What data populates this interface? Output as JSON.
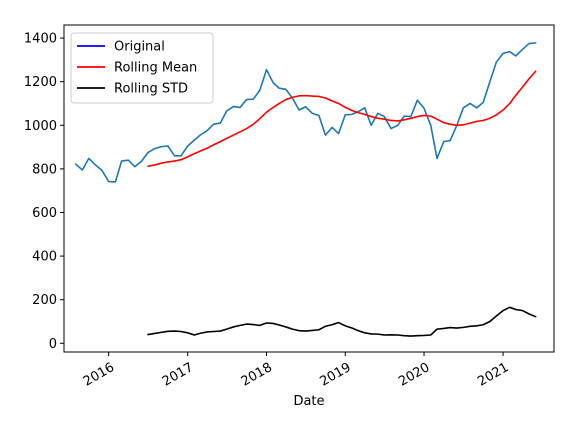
{
  "chart_data": {
    "type": "line",
    "title": "",
    "xlabel": "Date",
    "ylabel": "",
    "ylim": [
      -40,
      1460
    ],
    "xlim": [
      "2015-06-08",
      "2021-08-25"
    ],
    "grid": false,
    "legend_position": "top-left",
    "x_ticks": [
      {
        "date": "2016-01-01",
        "label": "2016"
      },
      {
        "date": "2017-01-01",
        "label": "2017"
      },
      {
        "date": "2018-01-01",
        "label": "2018"
      },
      {
        "date": "2019-01-01",
        "label": "2019"
      },
      {
        "date": "2020-01-01",
        "label": "2020"
      },
      {
        "date": "2021-01-01",
        "label": "2021"
      }
    ],
    "y_ticks": [
      0,
      200,
      400,
      600,
      800,
      1000,
      1200,
      1400
    ],
    "series": [
      {
        "name": "Original",
        "legend_color": "#0000ff",
        "line_color": "#1f77b4",
        "points": [
          [
            "2015-08-01",
            822
          ],
          [
            "2015-09-01",
            795
          ],
          [
            "2015-10-01",
            848
          ],
          [
            "2015-11-01",
            818
          ],
          [
            "2015-12-01",
            793
          ],
          [
            "2016-01-01",
            742
          ],
          [
            "2016-02-01",
            740
          ],
          [
            "2016-03-01",
            836
          ],
          [
            "2016-04-01",
            840
          ],
          [
            "2016-05-01",
            810
          ],
          [
            "2016-06-01",
            835
          ],
          [
            "2016-07-01",
            875
          ],
          [
            "2016-08-01",
            893
          ],
          [
            "2016-09-01",
            902
          ],
          [
            "2016-10-01",
            905
          ],
          [
            "2016-11-01",
            860
          ],
          [
            "2016-12-01",
            860
          ],
          [
            "2017-01-01",
            905
          ],
          [
            "2017-02-01",
            932
          ],
          [
            "2017-03-01",
            956
          ],
          [
            "2017-04-01",
            975
          ],
          [
            "2017-05-01",
            1005
          ],
          [
            "2017-06-01",
            1010
          ],
          [
            "2017-07-01",
            1066
          ],
          [
            "2017-08-01",
            1086
          ],
          [
            "2017-09-01",
            1082
          ],
          [
            "2017-10-01",
            1118
          ],
          [
            "2017-11-01",
            1120
          ],
          [
            "2017-12-01",
            1160
          ],
          [
            "2018-01-01",
            1255
          ],
          [
            "2018-02-01",
            1195
          ],
          [
            "2018-03-01",
            1170
          ],
          [
            "2018-04-01",
            1165
          ],
          [
            "2018-05-01",
            1125
          ],
          [
            "2018-06-01",
            1070
          ],
          [
            "2018-07-01",
            1085
          ],
          [
            "2018-08-01",
            1055
          ],
          [
            "2018-09-01",
            1045
          ],
          [
            "2018-10-01",
            955
          ],
          [
            "2018-11-01",
            990
          ],
          [
            "2018-12-01",
            962
          ],
          [
            "2019-01-01",
            1048
          ],
          [
            "2019-02-01",
            1050
          ],
          [
            "2019-03-01",
            1062
          ],
          [
            "2019-04-01",
            1080
          ],
          [
            "2019-05-01",
            1000
          ],
          [
            "2019-06-01",
            1055
          ],
          [
            "2019-07-01",
            1040
          ],
          [
            "2019-08-01",
            985
          ],
          [
            "2019-09-01",
            1000
          ],
          [
            "2019-10-01",
            1042
          ],
          [
            "2019-11-01",
            1040
          ],
          [
            "2019-12-01",
            1115
          ],
          [
            "2020-01-01",
            1078
          ],
          [
            "2020-02-01",
            1000
          ],
          [
            "2020-03-01",
            848
          ],
          [
            "2020-04-01",
            925
          ],
          [
            "2020-05-01",
            930
          ],
          [
            "2020-06-01",
            1000
          ],
          [
            "2020-07-01",
            1080
          ],
          [
            "2020-08-01",
            1100
          ],
          [
            "2020-09-01",
            1080
          ],
          [
            "2020-10-01",
            1105
          ],
          [
            "2020-11-01",
            1200
          ],
          [
            "2020-12-01",
            1290
          ],
          [
            "2021-01-01",
            1330
          ],
          [
            "2021-02-01",
            1338
          ],
          [
            "2021-03-01",
            1318
          ],
          [
            "2021-04-01",
            1348
          ],
          [
            "2021-05-01",
            1375
          ],
          [
            "2021-06-01",
            1378
          ]
        ]
      },
      {
        "name": "Rolling Mean",
        "legend_color": "#ff0000",
        "line_color": "#ff0000",
        "points": [
          [
            "2016-07-01",
            812
          ],
          [
            "2016-08-01",
            818
          ],
          [
            "2016-09-01",
            826
          ],
          [
            "2016-10-01",
            832
          ],
          [
            "2016-11-01",
            836
          ],
          [
            "2016-12-01",
            842
          ],
          [
            "2017-01-01",
            855
          ],
          [
            "2017-02-01",
            870
          ],
          [
            "2017-03-01",
            882
          ],
          [
            "2017-04-01",
            895
          ],
          [
            "2017-05-01",
            910
          ],
          [
            "2017-06-01",
            925
          ],
          [
            "2017-07-01",
            940
          ],
          [
            "2017-08-01",
            955
          ],
          [
            "2017-09-01",
            970
          ],
          [
            "2017-10-01",
            985
          ],
          [
            "2017-11-01",
            1005
          ],
          [
            "2017-12-01",
            1030
          ],
          [
            "2018-01-01",
            1060
          ],
          [
            "2018-02-01",
            1082
          ],
          [
            "2018-03-01",
            1100
          ],
          [
            "2018-04-01",
            1118
          ],
          [
            "2018-05-01",
            1128
          ],
          [
            "2018-06-01",
            1135
          ],
          [
            "2018-07-01",
            1136
          ],
          [
            "2018-08-01",
            1134
          ],
          [
            "2018-09-01",
            1132
          ],
          [
            "2018-10-01",
            1125
          ],
          [
            "2018-11-01",
            1112
          ],
          [
            "2018-12-01",
            1100
          ],
          [
            "2019-01-01",
            1082
          ],
          [
            "2019-02-01",
            1068
          ],
          [
            "2019-03-01",
            1058
          ],
          [
            "2019-04-01",
            1050
          ],
          [
            "2019-05-01",
            1040
          ],
          [
            "2019-06-01",
            1032
          ],
          [
            "2019-07-01",
            1028
          ],
          [
            "2019-08-01",
            1022
          ],
          [
            "2019-09-01",
            1020
          ],
          [
            "2019-10-01",
            1025
          ],
          [
            "2019-11-01",
            1032
          ],
          [
            "2019-12-01",
            1040
          ],
          [
            "2020-01-01",
            1045
          ],
          [
            "2020-02-01",
            1042
          ],
          [
            "2020-03-01",
            1028
          ],
          [
            "2020-04-01",
            1012
          ],
          [
            "2020-05-01",
            1005
          ],
          [
            "2020-06-01",
            1000
          ],
          [
            "2020-07-01",
            1002
          ],
          [
            "2020-08-01",
            1010
          ],
          [
            "2020-09-01",
            1018
          ],
          [
            "2020-10-01",
            1022
          ],
          [
            "2020-11-01",
            1032
          ],
          [
            "2020-12-01",
            1048
          ],
          [
            "2021-01-01",
            1070
          ],
          [
            "2021-02-01",
            1100
          ],
          [
            "2021-03-01",
            1138
          ],
          [
            "2021-04-01",
            1175
          ],
          [
            "2021-05-01",
            1213
          ],
          [
            "2021-06-01",
            1248
          ]
        ]
      },
      {
        "name": "Rolling STD",
        "legend_color": "#000000",
        "line_color": "#000000",
        "points": [
          [
            "2016-07-01",
            40
          ],
          [
            "2016-08-01",
            45
          ],
          [
            "2016-09-01",
            50
          ],
          [
            "2016-10-01",
            55
          ],
          [
            "2016-11-01",
            56
          ],
          [
            "2016-12-01",
            54
          ],
          [
            "2017-01-01",
            48
          ],
          [
            "2017-02-01",
            38
          ],
          [
            "2017-03-01",
            46
          ],
          [
            "2017-04-01",
            52
          ],
          [
            "2017-05-01",
            54
          ],
          [
            "2017-06-01",
            56
          ],
          [
            "2017-07-01",
            65
          ],
          [
            "2017-08-01",
            75
          ],
          [
            "2017-09-01",
            82
          ],
          [
            "2017-10-01",
            88
          ],
          [
            "2017-11-01",
            86
          ],
          [
            "2017-12-01",
            82
          ],
          [
            "2018-01-01",
            93
          ],
          [
            "2018-02-01",
            91
          ],
          [
            "2018-03-01",
            84
          ],
          [
            "2018-04-01",
            75
          ],
          [
            "2018-05-01",
            65
          ],
          [
            "2018-06-01",
            58
          ],
          [
            "2018-07-01",
            56
          ],
          [
            "2018-08-01",
            59
          ],
          [
            "2018-09-01",
            62
          ],
          [
            "2018-10-01",
            78
          ],
          [
            "2018-11-01",
            85
          ],
          [
            "2018-12-01",
            95
          ],
          [
            "2019-01-01",
            80
          ],
          [
            "2019-02-01",
            70
          ],
          [
            "2019-03-01",
            58
          ],
          [
            "2019-04-01",
            48
          ],
          [
            "2019-05-01",
            43
          ],
          [
            "2019-06-01",
            42
          ],
          [
            "2019-07-01",
            38
          ],
          [
            "2019-08-01",
            39
          ],
          [
            "2019-09-01",
            38
          ],
          [
            "2019-10-01",
            35
          ],
          [
            "2019-11-01",
            33
          ],
          [
            "2019-12-01",
            35
          ],
          [
            "2020-01-01",
            36
          ],
          [
            "2020-02-01",
            38
          ],
          [
            "2020-03-01",
            65
          ],
          [
            "2020-04-01",
            68
          ],
          [
            "2020-05-01",
            72
          ],
          [
            "2020-06-01",
            70
          ],
          [
            "2020-07-01",
            73
          ],
          [
            "2020-08-01",
            78
          ],
          [
            "2020-09-01",
            80
          ],
          [
            "2020-10-01",
            85
          ],
          [
            "2020-11-01",
            100
          ],
          [
            "2020-12-01",
            125
          ],
          [
            "2021-01-01",
            150
          ],
          [
            "2021-02-01",
            165
          ],
          [
            "2021-03-01",
            155
          ],
          [
            "2021-04-01",
            150
          ],
          [
            "2021-05-01",
            135
          ],
          [
            "2021-06-01",
            122
          ]
        ]
      }
    ]
  }
}
